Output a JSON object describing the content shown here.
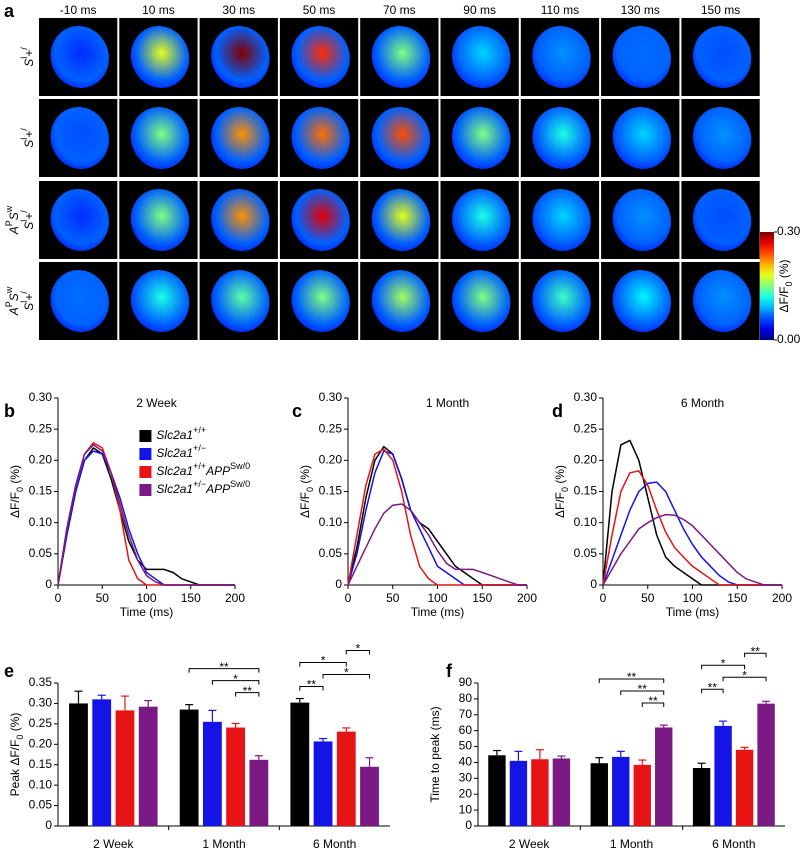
{
  "panel_labels": [
    "a",
    "b",
    "c",
    "d",
    "e",
    "f"
  ],
  "panel_a": {
    "times": [
      "-10 ms",
      "10 ms",
      "30 ms",
      "50 ms",
      "70 ms",
      "90 ms",
      "110 ms",
      "130 ms",
      "150 ms"
    ],
    "rows": [
      [
        [
          "Slc2a1",
          "+/+"
        ]
      ],
      [
        [
          "Slc2a1",
          "+/−"
        ]
      ],
      [
        [
          "APP",
          "Sw/0"
        ],
        [
          "Slc2a1",
          "+/+"
        ]
      ],
      [
        [
          "APP",
          "Sw/0"
        ],
        [
          "Slc2a1",
          "+/−"
        ]
      ]
    ],
    "intensity": [
      [
        0.05,
        0.18,
        0.3,
        0.25,
        0.15,
        0.1,
        0.08,
        0.07,
        0.06
      ],
      [
        0.06,
        0.15,
        0.22,
        0.23,
        0.24,
        0.15,
        0.12,
        0.1,
        0.08
      ],
      [
        0.05,
        0.15,
        0.22,
        0.27,
        0.18,
        0.12,
        0.1,
        0.08,
        0.06
      ],
      [
        0.07,
        0.12,
        0.14,
        0.15,
        0.16,
        0.15,
        0.13,
        0.11,
        0.08
      ]
    ],
    "colorbar": {
      "label": [
        "ΔF/F",
        "0",
        " (%)"
      ],
      "lim": [
        0,
        0.3
      ],
      "ticks": [
        {
          "value": 0.3,
          "label": "0.30"
        },
        {
          "value": 0,
          "label": "0.00"
        }
      ]
    }
  },
  "chart_data": [
    {
      "type": "line",
      "title": "2 Week",
      "xlabel": "Time (ms)",
      "ylabel": [
        "ΔF/F",
        "0",
        " (%)"
      ],
      "x": [
        0,
        10,
        20,
        30,
        40,
        50,
        60,
        70,
        80,
        90,
        100,
        110,
        120,
        130,
        140,
        150,
        160,
        170,
        180,
        190,
        200
      ],
      "xlim": [
        0,
        200
      ],
      "xticks": [
        0,
        50,
        100,
        150,
        200
      ],
      "ylim": [
        0,
        0.3
      ],
      "yticks": [
        0,
        0.05,
        {
          "value": 0.1,
          "label": "0.10"
        },
        0.15,
        {
          "value": 0.2,
          "label": "0.20"
        },
        0.25,
        {
          "value": 0.3,
          "label": "0.30"
        }
      ],
      "legend": "upper right",
      "series": [
        {
          "name": [
            [
              "Slc2a1",
              "+/+"
            ]
          ],
          "color": "#000000",
          "values": [
            0,
            0.08,
            0.15,
            0.2,
            0.22,
            0.21,
            0.17,
            0.12,
            0.07,
            0.04,
            0.025,
            0.025,
            0.025,
            0.02,
            0.01,
            0.005,
            0,
            0,
            0,
            0,
            0
          ]
        },
        {
          "name": [
            [
              "Slc2a1",
              "+/−"
            ]
          ],
          "color": "#1414e6",
          "values": [
            0,
            0.08,
            0.15,
            0.2,
            0.215,
            0.21,
            0.18,
            0.14,
            0.09,
            0.05,
            0.02,
            0.01,
            0,
            0,
            0,
            0,
            0,
            0,
            0,
            0,
            0
          ]
        },
        {
          "name": [
            [
              "Slc2a1",
              "+/+"
            ],
            [
              "APP",
              "Sw/0"
            ]
          ],
          "color": "#e61414",
          "values": [
            0,
            0.09,
            0.16,
            0.21,
            0.228,
            0.22,
            0.18,
            0.12,
            0.04,
            0.01,
            0,
            0,
            0,
            0,
            0,
            0,
            0,
            0,
            0,
            0,
            0
          ]
        },
        {
          "name": [
            [
              "Slc2a1",
              "+/−"
            ],
            [
              "APP",
              "Sw/0"
            ]
          ],
          "color": "#7a1a82",
          "values": [
            0,
            0.09,
            0.16,
            0.21,
            0.225,
            0.215,
            0.18,
            0.13,
            0.08,
            0.04,
            0.015,
            0.005,
            0,
            0,
            0,
            0,
            0,
            0,
            0,
            0,
            0
          ]
        }
      ]
    },
    {
      "type": "line",
      "title": "1 Month",
      "xlabel": "Time (ms)",
      "ylabel": [
        "ΔF/F",
        "0",
        " (%)"
      ],
      "x": [
        0,
        10,
        20,
        30,
        40,
        50,
        60,
        70,
        80,
        90,
        100,
        110,
        120,
        130,
        140,
        150,
        160,
        170,
        180,
        190,
        200
      ],
      "xlim": [
        0,
        200
      ],
      "xticks": [
        0,
        50,
        100,
        150,
        200
      ],
      "ylim": [
        0,
        0.3
      ],
      "yticks": [
        0,
        0.05,
        {
          "value": 0.1,
          "label": "0.10"
        },
        0.15,
        {
          "value": 0.2,
          "label": "0.20"
        },
        0.25,
        {
          "value": 0.3,
          "label": "0.30"
        }
      ],
      "series": [
        {
          "color": "#000000",
          "values": [
            0,
            0.06,
            0.14,
            0.2,
            0.222,
            0.21,
            0.17,
            0.12,
            0.1,
            0.09,
            0.07,
            0.05,
            0.03,
            0.02,
            0.01,
            0,
            0,
            0,
            0,
            0,
            0
          ]
        },
        {
          "color": "#1414e6",
          "values": [
            0,
            0.05,
            0.12,
            0.18,
            0.215,
            0.21,
            0.17,
            0.12,
            0.09,
            0.06,
            0.03,
            0.02,
            0.01,
            0,
            0,
            0,
            0,
            0,
            0,
            0,
            0
          ]
        },
        {
          "color": "#e61414",
          "values": [
            0,
            0.08,
            0.16,
            0.21,
            0.218,
            0.2,
            0.15,
            0.08,
            0.03,
            0.01,
            0,
            0,
            0,
            0,
            0,
            0,
            0,
            0,
            0,
            0,
            0
          ]
        },
        {
          "color": "#7a1a82",
          "values": [
            0,
            0.03,
            0.06,
            0.09,
            0.115,
            0.128,
            0.13,
            0.12,
            0.1,
            0.08,
            0.055,
            0.035,
            0.025,
            0.025,
            0.025,
            0.02,
            0.015,
            0.01,
            0.005,
            0,
            0
          ]
        }
      ]
    },
    {
      "type": "line",
      "title": "6 Month",
      "xlabel": "Time (ms)",
      "ylabel": [
        "ΔF/F",
        "0",
        " (%)"
      ],
      "x": [
        0,
        10,
        20,
        30,
        40,
        50,
        60,
        70,
        80,
        90,
        100,
        110,
        120,
        130,
        140,
        150,
        160,
        170,
        180,
        190,
        200
      ],
      "xlim": [
        0,
        200
      ],
      "xticks": [
        0,
        50,
        100,
        150,
        200
      ],
      "ylim": [
        0,
        0.3
      ],
      "yticks": [
        0,
        0.05,
        {
          "value": 0.1,
          "label": "0.10"
        },
        0.15,
        {
          "value": 0.2,
          "label": "0.20"
        },
        0.25,
        {
          "value": 0.3,
          "label": "0.30"
        }
      ],
      "series": [
        {
          "color": "#000000",
          "values": [
            0,
            0.15,
            0.225,
            0.232,
            0.2,
            0.14,
            0.08,
            0.045,
            0.03,
            0.02,
            0.01,
            0,
            0,
            0,
            0,
            0,
            0,
            0,
            0,
            0,
            0
          ]
        },
        {
          "color": "#1414e6",
          "values": [
            0,
            0.04,
            0.08,
            0.12,
            0.15,
            0.163,
            0.165,
            0.15,
            0.12,
            0.09,
            0.065,
            0.045,
            0.03,
            0.015,
            0.005,
            0,
            0,
            0,
            0,
            0,
            0
          ]
        },
        {
          "color": "#e61414",
          "values": [
            0,
            0.08,
            0.15,
            0.18,
            0.183,
            0.16,
            0.12,
            0.085,
            0.06,
            0.045,
            0.03,
            0.02,
            0.01,
            0,
            0,
            0,
            0,
            0,
            0,
            0,
            0
          ]
        },
        {
          "color": "#7a1a82",
          "values": [
            0,
            0.025,
            0.05,
            0.07,
            0.09,
            0.1,
            0.108,
            0.113,
            0.112,
            0.105,
            0.095,
            0.08,
            0.065,
            0.05,
            0.035,
            0.02,
            0.01,
            0.005,
            0,
            0,
            0
          ]
        }
      ]
    },
    {
      "type": "bar",
      "ylabel": [
        "Peak ΔF/F",
        "0",
        " (%)"
      ],
      "categories": [
        "2 Week",
        "1 Month",
        "6 Month"
      ],
      "ylim": [
        0,
        0.35
      ],
      "yticks": [
        0,
        0.05,
        {
          "value": 0.1,
          "label": "0.10"
        },
        0.15,
        {
          "value": 0.2,
          "label": "0.20"
        },
        0.25,
        {
          "value": 0.3,
          "label": "0.30"
        },
        0.35
      ],
      "series": [
        {
          "color": "#000000",
          "values": [
            0.3,
            0.285,
            0.302
          ],
          "errors": [
            0.03,
            0.012,
            0.01
          ]
        },
        {
          "color": "#1414e6",
          "values": [
            0.31,
            0.255,
            0.207
          ],
          "errors": [
            0.01,
            0.028,
            0.007
          ]
        },
        {
          "color": "#e61414",
          "values": [
            0.283,
            0.241,
            0.231
          ],
          "errors": [
            0.035,
            0.01,
            0.009
          ]
        },
        {
          "color": "#7a1a82",
          "values": [
            0.292,
            0.162,
            0.145
          ],
          "errors": [
            0.015,
            0.01,
            0.022
          ]
        }
      ],
      "annotations": [
        {
          "text": "**",
          "group": 1,
          "from": 2,
          "to": 3
        },
        {
          "text": "*",
          "group": 1,
          "from": 1,
          "to": 3
        },
        {
          "text": "**",
          "group": 1,
          "from": 0,
          "to": 3
        },
        {
          "text": "**",
          "group": 2,
          "from": 0,
          "to": 1
        },
        {
          "text": "*",
          "group": 2,
          "from": 1,
          "to": 3
        },
        {
          "text": "*",
          "group": 2,
          "from": 0,
          "to": 2
        },
        {
          "text": "*",
          "group": 2,
          "from": 2,
          "to": 3
        }
      ]
    },
    {
      "type": "bar",
      "ylabel": [
        "Time to peak (ms)"
      ],
      "categories": [
        "2 Week",
        "1 Month",
        "6 Month"
      ],
      "ylim": [
        0,
        90
      ],
      "yticks": [
        0,
        10,
        20,
        30,
        40,
        50,
        60,
        70,
        80,
        90
      ],
      "series": [
        {
          "color": "#000000",
          "values": [
            44.5,
            39.5,
            36.5
          ],
          "errors": [
            3,
            3.5,
            3
          ]
        },
        {
          "color": "#1414e6",
          "values": [
            41,
            43.5,
            63
          ],
          "errors": [
            6,
            3.5,
            3
          ]
        },
        {
          "color": "#e61414",
          "values": [
            42,
            38.5,
            48
          ],
          "errors": [
            6,
            3,
            1.5
          ]
        },
        {
          "color": "#7a1a82",
          "values": [
            42.5,
            62,
            77
          ],
          "errors": [
            1.5,
            1.5,
            1.5
          ]
        }
      ],
      "annotations": [
        {
          "text": "**",
          "group": 1,
          "from": 2,
          "to": 3
        },
        {
          "text": "**",
          "group": 1,
          "from": 1,
          "to": 3
        },
        {
          "text": "**",
          "group": 1,
          "from": 0,
          "to": 3
        },
        {
          "text": "**",
          "group": 2,
          "from": 0,
          "to": 1
        },
        {
          "text": "*",
          "group": 2,
          "from": 1,
          "to": 3
        },
        {
          "text": "*",
          "group": 2,
          "from": 0,
          "to": 2
        },
        {
          "text": "**",
          "group": 2,
          "from": 2,
          "to": 3
        }
      ]
    }
  ]
}
